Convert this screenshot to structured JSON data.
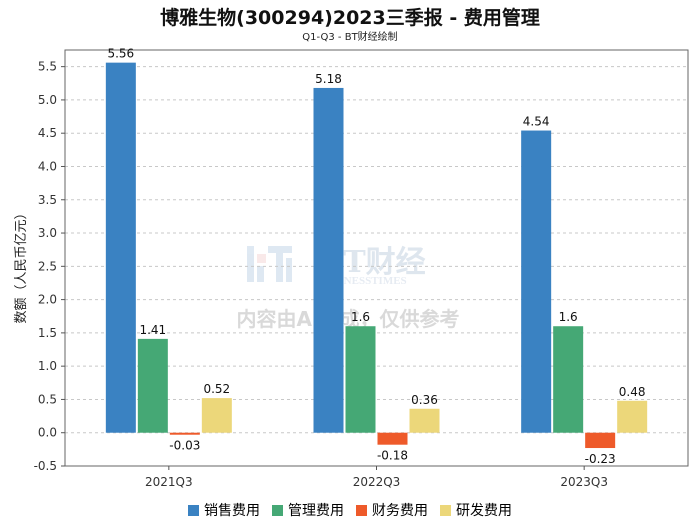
{
  "title": "博雅生物(300294)2023三季报 - 费用管理",
  "subtitle": "Q1-Q3 - BT财经绘制",
  "watermark": {
    "brand": "BT财经",
    "brand_sub": "BUSINESSTIMES",
    "notice": "内容由AI生成，仅供参考"
  },
  "chart_data": {
    "type": "bar",
    "categories": [
      "2021Q3",
      "2022Q3",
      "2023Q3"
    ],
    "series": [
      {
        "name": "销售费用",
        "color": "#3a82c2",
        "values": [
          5.56,
          5.18,
          4.54
        ],
        "labels": [
          "5.56",
          "5.18",
          "4.54"
        ]
      },
      {
        "name": "管理费用",
        "color": "#45a875",
        "values": [
          1.41,
          1.6,
          1.6
        ],
        "labels": [
          "1.41",
          "1.6",
          "1.6"
        ]
      },
      {
        "name": "财务费用",
        "color": "#ee5a2a",
        "values": [
          -0.03,
          -0.18,
          -0.23
        ],
        "labels": [
          "-0.03",
          "-0.18",
          "-0.23"
        ]
      },
      {
        "name": "研发费用",
        "color": "#ecd77a",
        "values": [
          0.52,
          0.36,
          0.48
        ],
        "labels": [
          "0.52",
          "0.36",
          "0.48"
        ]
      }
    ],
    "ylabel": "数额（人民币亿元）",
    "xlabel": "",
    "ylim": [
      -0.5,
      5.75
    ],
    "yticks": [
      "-0.5",
      "0.0",
      "0.5",
      "1.0",
      "1.5",
      "2.0",
      "2.5",
      "3.0",
      "3.5",
      "4.0",
      "4.5",
      "5.0",
      "5.5"
    ],
    "grid": true,
    "legend_position": "bottom"
  }
}
